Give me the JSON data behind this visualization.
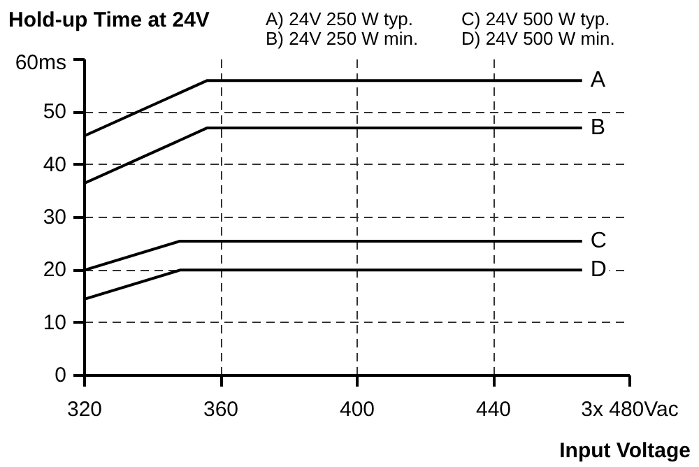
{
  "chart_data": {
    "type": "line",
    "title": "Hold-up Time at 24V",
    "xlabel": "Input Voltage",
    "annotations": [
      "A) 24V 250 W typ.",
      "B) 24V 250 W min.",
      "C) 24V 500 W typ.",
      "D) 24V 500 W min."
    ],
    "x": [
      320,
      356,
      466
    ],
    "series": [
      {
        "name": "A",
        "color": "#000000",
        "values": [
          45.5,
          56,
          56
        ]
      },
      {
        "name": "B",
        "color": "#000000",
        "values": [
          36.5,
          47,
          47
        ]
      },
      {
        "name": "C",
        "color": "#000000",
        "x": [
          320,
          348,
          466
        ],
        "values": [
          20,
          25.5,
          25.5
        ]
      },
      {
        "name": "D",
        "color": "#000000",
        "x": [
          320,
          348,
          466
        ],
        "values": [
          14.5,
          20,
          20
        ]
      }
    ],
    "xlim": [
      320,
      480
    ],
    "ylim": [
      0,
      60
    ],
    "xticks": [
      320,
      360,
      400,
      440,
      {
        "value": 480,
        "label": "3x 480Vac"
      }
    ],
    "yticks": [
      0,
      10,
      20,
      30,
      40,
      50,
      {
        "value": 60,
        "label": "60ms"
      }
    ],
    "grid": true,
    "marker": "none",
    "line_style": "solid"
  }
}
